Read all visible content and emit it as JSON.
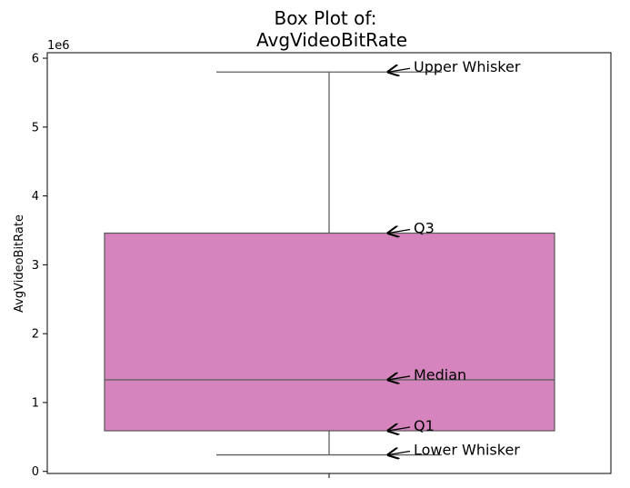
{
  "chart_data": {
    "type": "box",
    "title_line1": "Box Plot of:",
    "title_line2": "AvgVideoBitRate",
    "ylabel": "AvgVideoBitRate",
    "xlabel": "",
    "offset_label": "1e6",
    "ylim": [
      -0.03,
      6.08
    ],
    "yticks": [
      0,
      1,
      2,
      3,
      4,
      5,
      6
    ],
    "ytick_labels": [
      "0",
      "1",
      "2",
      "3",
      "4",
      "5",
      "6"
    ],
    "grid": false,
    "box": {
      "lower_whisker": 0.24,
      "q1": 0.59,
      "median": 1.33,
      "q3": 3.46,
      "upper_whisker": 5.8,
      "color": "#d684bd",
      "edge_color": "#5f5f5f"
    },
    "annotations": [
      {
        "label": "Upper Whisker",
        "key": "upper_whisker"
      },
      {
        "label": "Q3",
        "key": "q3"
      },
      {
        "label": "Median",
        "key": "median"
      },
      {
        "label": "Q1",
        "key": "q1"
      },
      {
        "label": "Lower Whisker",
        "key": "lower_whisker"
      }
    ]
  }
}
